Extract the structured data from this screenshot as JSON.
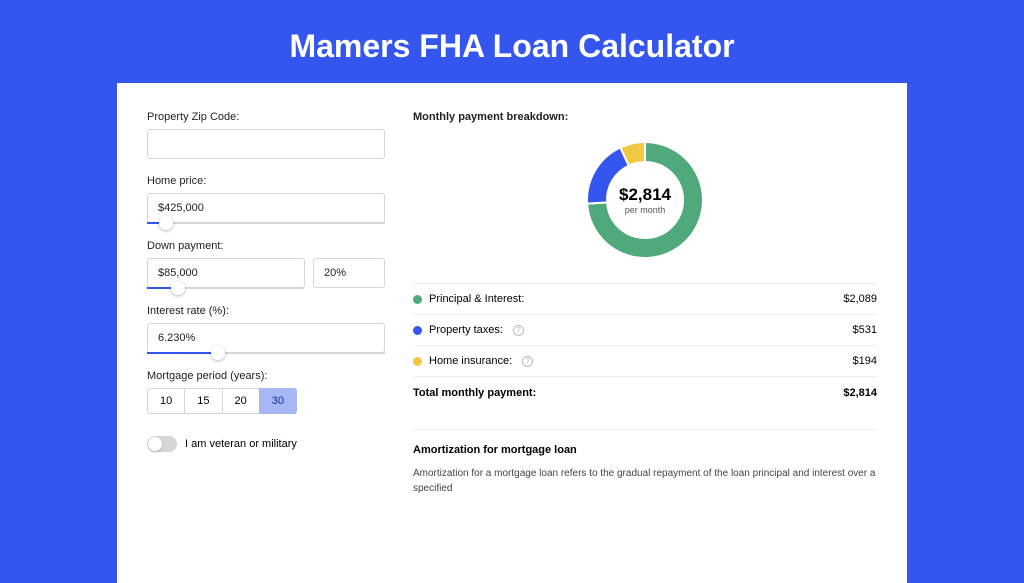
{
  "title": "Mamers FHA Loan Calculator",
  "form": {
    "zip": {
      "label": "Property Zip Code:",
      "value": ""
    },
    "price": {
      "label": "Home price:",
      "value": "$425,000",
      "slider_pct": 8
    },
    "down": {
      "label": "Down payment:",
      "amount": "$85,000",
      "pct": "20%",
      "slider_pct": 20
    },
    "rate": {
      "label": "Interest rate (%):",
      "value": "6.230%",
      "slider_pct": 30
    },
    "period": {
      "label": "Mortgage period (years):",
      "options": [
        "10",
        "15",
        "20",
        "30"
      ],
      "selected": "30"
    },
    "veteran": {
      "label": "I am veteran or military",
      "on": false
    }
  },
  "breakdown": {
    "title": "Monthly payment breakdown:",
    "center_amount": "$2,814",
    "center_sub": "per month",
    "items": [
      {
        "label": "Principal & Interest:",
        "value": "$2,089",
        "color": "#4fa97a",
        "pct": 74
      },
      {
        "label": "Property taxes:",
        "value": "$531",
        "color": "#3456ef",
        "pct": 19,
        "help": true
      },
      {
        "label": "Home insurance:",
        "value": "$194",
        "color": "#f2c744",
        "pct": 7,
        "help": true
      }
    ],
    "total_label": "Total monthly payment:",
    "total_value": "$2,814"
  },
  "amort": {
    "title": "Amortization for mortgage loan",
    "body": "Amortization for a mortgage loan refers to the gradual repayment of the loan principal and interest over a specified"
  },
  "colors": {
    "page_bg": "#3456ef"
  }
}
